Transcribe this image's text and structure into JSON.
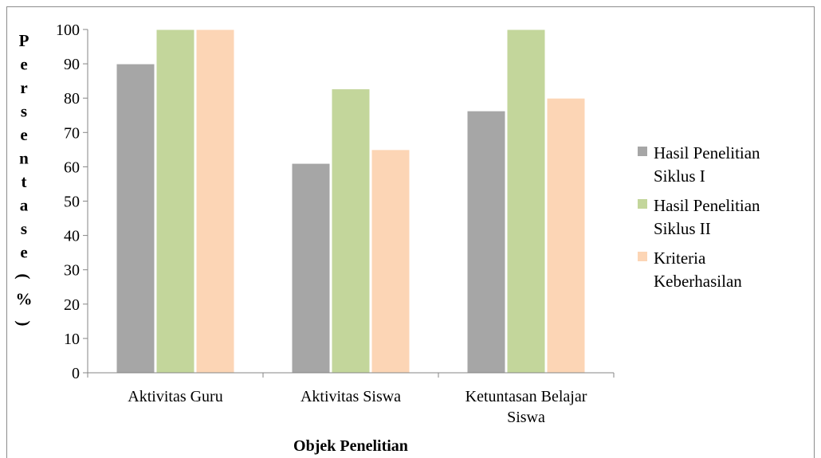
{
  "chart_data": {
    "type": "bar",
    "categories": [
      [
        "Aktivitas Guru"
      ],
      [
        "Aktivitas Siswa"
      ],
      [
        "Ketuntasan Belajar",
        "Siswa"
      ]
    ],
    "series": [
      {
        "name": [
          "Hasil Penelitian",
          "Siklus I"
        ],
        "values": [
          90,
          61,
          76.3
        ],
        "color": "#a6a6a6"
      },
      {
        "name": [
          "Hasil Penelitian",
          "Siklus II"
        ],
        "values": [
          100,
          82.7,
          100
        ],
        "color": "#c3d69b"
      },
      {
        "name": [
          "Kriteria",
          "Keberhasilan"
        ],
        "values": [
          100,
          65,
          80
        ],
        "color": "#fcd5b5"
      }
    ],
    "yticks": [
      0,
      10,
      20,
      30,
      40,
      50,
      60,
      70,
      80,
      90,
      100
    ],
    "ylim": [
      0,
      100
    ],
    "xlabel": "Objek Penelitian",
    "ylabel_letters": [
      "P",
      "e",
      "r",
      "s",
      "e",
      "n",
      "t",
      "a",
      "s",
      "e",
      "(",
      "%",
      ")"
    ],
    "legend_position": "right",
    "grid": false
  }
}
